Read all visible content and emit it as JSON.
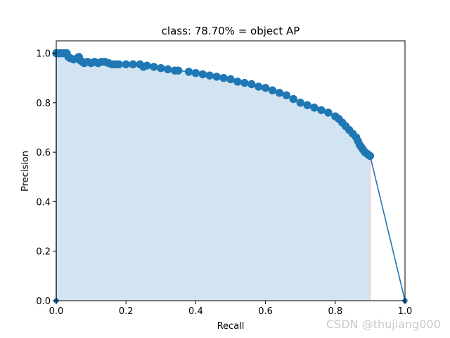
{
  "watermark": "CSDN @thujiang000",
  "chart_data": {
    "type": "area",
    "title": "class: 78.70% = object AP",
    "xlabel": "Recall",
    "ylabel": "Precision",
    "xlim": [
      0,
      1
    ],
    "ylim": [
      0,
      1.05
    ],
    "xticks": [
      0,
      0.2,
      0.4,
      0.6,
      0.8,
      1.0
    ],
    "yticks": [
      0,
      0.2,
      0.4,
      0.6,
      0.8,
      1.0
    ],
    "xtick_labels": [
      "0.0",
      "0.2",
      "0.4",
      "0.6",
      "0.8",
      "1.0"
    ],
    "ytick_labels": [
      "0.0",
      "0.2",
      "0.4",
      "0.6",
      "0.8",
      "1.0"
    ],
    "grid": false,
    "colors": {
      "line": "#1f77b4",
      "fill": "#1f77b4",
      "fill_alpha": 0.2,
      "edge": "#ffb6c1"
    },
    "series": [
      {
        "x": [
          0.0,
          0.0,
          0.005,
          0.01,
          0.015,
          0.02,
          0.025,
          0.03,
          0.035,
          0.04,
          0.05,
          0.06,
          0.065,
          0.07,
          0.075,
          0.08,
          0.09,
          0.1,
          0.11,
          0.12,
          0.13,
          0.14,
          0.15,
          0.16,
          0.17,
          0.18,
          0.2,
          0.22,
          0.24,
          0.25,
          0.26,
          0.28,
          0.3,
          0.32,
          0.34,
          0.35,
          0.38,
          0.4,
          0.42,
          0.44,
          0.46,
          0.48,
          0.5,
          0.52,
          0.54,
          0.56,
          0.58,
          0.6,
          0.62,
          0.64,
          0.66,
          0.68,
          0.7,
          0.72,
          0.74,
          0.76,
          0.78,
          0.8,
          0.81,
          0.82,
          0.83,
          0.84,
          0.85,
          0.86,
          0.865,
          0.87,
          0.875,
          0.88,
          0.885,
          0.89,
          0.895,
          0.9,
          1.0
        ],
        "y": [
          0.0,
          1.0,
          1.0,
          1.0,
          1.0,
          1.0,
          1.0,
          1.0,
          0.985,
          0.98,
          0.975,
          0.98,
          0.985,
          0.97,
          0.965,
          0.96,
          0.965,
          0.96,
          0.965,
          0.96,
          0.965,
          0.965,
          0.96,
          0.955,
          0.955,
          0.955,
          0.955,
          0.955,
          0.955,
          0.945,
          0.95,
          0.945,
          0.94,
          0.935,
          0.93,
          0.93,
          0.925,
          0.92,
          0.915,
          0.91,
          0.905,
          0.9,
          0.895,
          0.885,
          0.88,
          0.875,
          0.865,
          0.86,
          0.85,
          0.84,
          0.83,
          0.815,
          0.8,
          0.79,
          0.78,
          0.77,
          0.76,
          0.745,
          0.735,
          0.72,
          0.705,
          0.69,
          0.675,
          0.66,
          0.645,
          0.63,
          0.62,
          0.61,
          0.6,
          0.595,
          0.59,
          0.585,
          0.0
        ]
      }
    ]
  }
}
